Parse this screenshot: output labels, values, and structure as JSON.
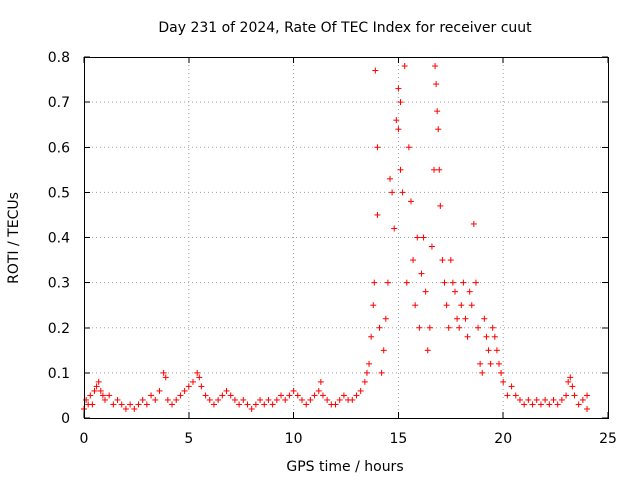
{
  "chart_data": {
    "type": "scatter",
    "title": "Day 231 of 2024, Rate Of TEC Index for receiver cuut",
    "xlabel": "GPS time / hours",
    "ylabel": "ROTI / TECUs",
    "xlim": [
      0,
      25
    ],
    "ylim": [
      0,
      0.8
    ],
    "x_ticks": [
      0,
      5,
      10,
      15,
      20,
      25
    ],
    "x_tick_labels": [
      "0",
      "5",
      "10",
      "15",
      "20",
      "25"
    ],
    "y_ticks": [
      0,
      0.1,
      0.2,
      0.3,
      0.4,
      0.5,
      0.6,
      0.7,
      0.8
    ],
    "y_tick_labels": [
      "0",
      "0.1",
      "0.2",
      "0.3",
      "0.4",
      "0.5",
      "0.6",
      "0.7",
      "0.8"
    ],
    "grid": true,
    "marker": "plus",
    "color": "#ff0000",
    "series": [
      {
        "name": "ROTI",
        "points": [
          [
            0.0,
            0.02
          ],
          [
            0.1,
            0.04
          ],
          [
            0.2,
            0.03
          ],
          [
            0.3,
            0.05
          ],
          [
            0.4,
            0.03
          ],
          [
            0.5,
            0.06
          ],
          [
            0.6,
            0.07
          ],
          [
            0.7,
            0.08
          ],
          [
            0.8,
            0.06
          ],
          [
            0.9,
            0.05
          ],
          [
            1.0,
            0.04
          ],
          [
            1.2,
            0.05
          ],
          [
            1.4,
            0.03
          ],
          [
            1.6,
            0.04
          ],
          [
            1.8,
            0.03
          ],
          [
            2.0,
            0.02
          ],
          [
            2.2,
            0.03
          ],
          [
            2.4,
            0.02
          ],
          [
            2.6,
            0.03
          ],
          [
            2.8,
            0.04
          ],
          [
            3.0,
            0.03
          ],
          [
            3.2,
            0.05
          ],
          [
            3.4,
            0.04
          ],
          [
            3.6,
            0.06
          ],
          [
            3.8,
            0.1
          ],
          [
            3.9,
            0.09
          ],
          [
            4.0,
            0.04
          ],
          [
            4.2,
            0.03
          ],
          [
            4.4,
            0.04
          ],
          [
            4.6,
            0.05
          ],
          [
            4.8,
            0.06
          ],
          [
            5.0,
            0.07
          ],
          [
            5.2,
            0.08
          ],
          [
            5.4,
            0.1
          ],
          [
            5.5,
            0.09
          ],
          [
            5.6,
            0.07
          ],
          [
            5.8,
            0.05
          ],
          [
            6.0,
            0.04
          ],
          [
            6.2,
            0.03
          ],
          [
            6.4,
            0.04
          ],
          [
            6.6,
            0.05
          ],
          [
            6.8,
            0.06
          ],
          [
            7.0,
            0.05
          ],
          [
            7.2,
            0.04
          ],
          [
            7.4,
            0.03
          ],
          [
            7.6,
            0.04
          ],
          [
            7.8,
            0.03
          ],
          [
            8.0,
            0.02
          ],
          [
            8.2,
            0.03
          ],
          [
            8.4,
            0.04
          ],
          [
            8.6,
            0.03
          ],
          [
            8.8,
            0.04
          ],
          [
            9.0,
            0.03
          ],
          [
            9.2,
            0.04
          ],
          [
            9.4,
            0.05
          ],
          [
            9.6,
            0.04
          ],
          [
            9.8,
            0.05
          ],
          [
            10.0,
            0.06
          ],
          [
            10.2,
            0.05
          ],
          [
            10.4,
            0.04
          ],
          [
            10.6,
            0.03
          ],
          [
            10.8,
            0.04
          ],
          [
            11.0,
            0.05
          ],
          [
            11.2,
            0.06
          ],
          [
            11.3,
            0.08
          ],
          [
            11.4,
            0.05
          ],
          [
            11.6,
            0.04
          ],
          [
            11.8,
            0.03
          ],
          [
            12.0,
            0.03
          ],
          [
            12.2,
            0.04
          ],
          [
            12.4,
            0.05
          ],
          [
            12.6,
            0.04
          ],
          [
            12.8,
            0.04
          ],
          [
            13.0,
            0.05
          ],
          [
            13.2,
            0.06
          ],
          [
            13.4,
            0.08
          ],
          [
            13.5,
            0.1
          ],
          [
            13.6,
            0.12
          ],
          [
            13.7,
            0.18
          ],
          [
            13.8,
            0.25
          ],
          [
            13.85,
            0.3
          ],
          [
            13.9,
            0.77
          ],
          [
            14.0,
            0.6
          ],
          [
            14.0,
            0.45
          ],
          [
            14.1,
            0.2
          ],
          [
            14.2,
            0.1
          ],
          [
            14.3,
            0.15
          ],
          [
            14.4,
            0.22
          ],
          [
            14.5,
            0.3
          ],
          [
            14.6,
            0.53
          ],
          [
            14.7,
            0.5
          ],
          [
            14.8,
            0.42
          ],
          [
            14.9,
            0.66
          ],
          [
            15.0,
            0.73
          ],
          [
            15.0,
            0.64
          ],
          [
            15.1,
            0.7
          ],
          [
            15.1,
            0.55
          ],
          [
            15.2,
            0.5
          ],
          [
            15.3,
            0.78
          ],
          [
            15.4,
            0.3
          ],
          [
            15.5,
            0.6
          ],
          [
            15.6,
            0.48
          ],
          [
            15.7,
            0.35
          ],
          [
            15.8,
            0.25
          ],
          [
            15.9,
            0.4
          ],
          [
            16.0,
            0.2
          ],
          [
            16.1,
            0.32
          ],
          [
            16.2,
            0.4
          ],
          [
            16.3,
            0.28
          ],
          [
            16.4,
            0.15
          ],
          [
            16.5,
            0.2
          ],
          [
            16.6,
            0.38
          ],
          [
            16.7,
            0.55
          ],
          [
            16.75,
            0.78
          ],
          [
            16.8,
            0.74
          ],
          [
            16.85,
            0.68
          ],
          [
            16.9,
            0.64
          ],
          [
            16.95,
            0.55
          ],
          [
            17.0,
            0.47
          ],
          [
            17.1,
            0.35
          ],
          [
            17.2,
            0.3
          ],
          [
            17.3,
            0.25
          ],
          [
            17.4,
            0.2
          ],
          [
            17.5,
            0.35
          ],
          [
            17.6,
            0.3
          ],
          [
            17.7,
            0.28
          ],
          [
            17.8,
            0.22
          ],
          [
            17.9,
            0.2
          ],
          [
            18.0,
            0.25
          ],
          [
            18.1,
            0.3
          ],
          [
            18.2,
            0.22
          ],
          [
            18.3,
            0.18
          ],
          [
            18.4,
            0.28
          ],
          [
            18.5,
            0.25
          ],
          [
            18.6,
            0.43
          ],
          [
            18.7,
            0.3
          ],
          [
            18.8,
            0.2
          ],
          [
            18.9,
            0.12
          ],
          [
            19.0,
            0.1
          ],
          [
            19.1,
            0.22
          ],
          [
            19.2,
            0.18
          ],
          [
            19.3,
            0.15
          ],
          [
            19.4,
            0.12
          ],
          [
            19.5,
            0.2
          ],
          [
            19.6,
            0.18
          ],
          [
            19.7,
            0.15
          ],
          [
            19.8,
            0.12
          ],
          [
            19.9,
            0.1
          ],
          [
            20.0,
            0.08
          ],
          [
            20.2,
            0.05
          ],
          [
            20.4,
            0.07
          ],
          [
            20.6,
            0.05
          ],
          [
            20.8,
            0.04
          ],
          [
            21.0,
            0.03
          ],
          [
            21.2,
            0.04
          ],
          [
            21.4,
            0.03
          ],
          [
            21.6,
            0.04
          ],
          [
            21.8,
            0.03
          ],
          [
            22.0,
            0.04
          ],
          [
            22.2,
            0.03
          ],
          [
            22.4,
            0.04
          ],
          [
            22.6,
            0.03
          ],
          [
            22.8,
            0.04
          ],
          [
            23.0,
            0.05
          ],
          [
            23.1,
            0.08
          ],
          [
            23.2,
            0.09
          ],
          [
            23.3,
            0.07
          ],
          [
            23.4,
            0.05
          ],
          [
            23.6,
            0.03
          ],
          [
            23.8,
            0.04
          ],
          [
            24.0,
            0.05
          ],
          [
            24.0,
            0.02
          ]
        ]
      }
    ]
  }
}
